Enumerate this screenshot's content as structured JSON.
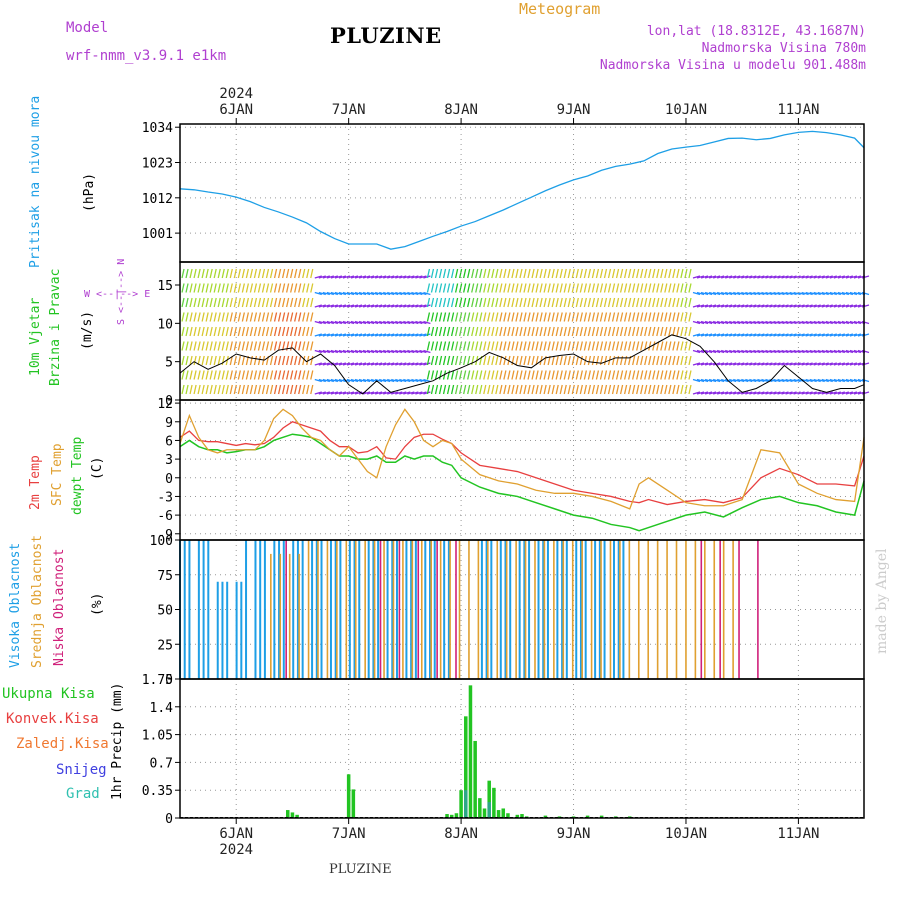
{
  "header": {
    "model_label": "Model",
    "model_name": "wrf-nmm_v3.9.1 e1km",
    "title": "PLUZINE",
    "meteogram": "Meteogram",
    "lonlat": "lon,lat (18.8312E, 43.1687N)",
    "elevation": "Nadmorska Visina 780m",
    "model_elevation": "Nadmorska Visina u modelu 901.488m",
    "footer": "PLUZINE",
    "watermark": "made by Angel"
  },
  "colors": {
    "pressure": "#1e9fe6",
    "wind_label": "#22c422",
    "wind_dir_label": "#b040d0",
    "t2m": "#e84040",
    "tsfc": "#e0a030",
    "dewpt": "#22c422",
    "cloud_high": "#1e9fe6",
    "cloud_mid": "#e0a030",
    "cloud_low": "#d0207a",
    "precip_total": "#22c422",
    "precip_conv": "#e84040",
    "precip_frz": "#f07830",
    "precip_snow": "#4040e0",
    "precip_grad": "#30c0b0",
    "header_purple": "#b040d0",
    "header_orange": "#e0a030"
  },
  "panels": {
    "pressure": {
      "label": "Pritisak na nivou mora",
      "unit": "(hPa)"
    },
    "wind": {
      "label1": "10m Vjetar",
      "label2": "Brzina i Pravac",
      "unit": "(m/s)",
      "dir_ns": "S <--|--> N",
      "dir_we": "W <--|--> E"
    },
    "temp": {
      "label_t2m": "2m Temp",
      "label_tsfc": "SFC Temp",
      "label_dew": "dewpt Temp",
      "unit": "(C)"
    },
    "cloud": {
      "label_high": "Visoka Oblacnost",
      "label_mid": "Srednja Oblacnost",
      "label_low": "Niska Oblacnost",
      "unit": "(%)"
    },
    "precip": {
      "unit": "1hr Precip (mm)"
    }
  },
  "legend_precip": [
    "Ukupna Kisa",
    "Konvek.Kisa",
    "Zaledj.Kisa",
    "Snijeg",
    "Grad"
  ],
  "chart_data": {
    "type": "line",
    "x_start_hour": -12,
    "x_end_hour": 134,
    "x_axis": {
      "top_year": "2024",
      "bottom_year": "2024",
      "day_ticks": [
        {
          "label": "6JAN",
          "hour": 0
        },
        {
          "label": "7JAN",
          "hour": 24
        },
        {
          "label": "8JAN",
          "hour": 48
        },
        {
          "label": "9JAN",
          "hour": 72
        },
        {
          "label": "10JAN",
          "hour": 96
        },
        {
          "label": "11JAN",
          "hour": 120
        }
      ]
    },
    "pressure": {
      "ylim": [
        992,
        1035
      ],
      "ticks": [
        "1001",
        "1012",
        "1023",
        "1034"
      ],
      "tick_values": [
        1001,
        1012,
        1023,
        1034
      ],
      "x": [
        -12,
        -9,
        -6,
        -3,
        0,
        3,
        6,
        9,
        12,
        15,
        18,
        21,
        24,
        27,
        30,
        33,
        36,
        39,
        42,
        45,
        48,
        51,
        54,
        57,
        60,
        63,
        66,
        69,
        72,
        75,
        78,
        81,
        84,
        87,
        90,
        93,
        96,
        99,
        102,
        105,
        108,
        111,
        114,
        117,
        120,
        123,
        126,
        129,
        132,
        134
      ],
      "y": [
        1014.8,
        1014.5,
        1013.8,
        1013.2,
        1012.2,
        1010.8,
        1009,
        1007.6,
        1006,
        1004.2,
        1001.5,
        999.3,
        997.6,
        997.6,
        997.6,
        996,
        996.8,
        998.4,
        1000,
        1001.5,
        1003.2,
        1004.6,
        1006.4,
        1008.2,
        1010.2,
        1012.2,
        1014.2,
        1016,
        1017.6,
        1018.8,
        1020.6,
        1021.8,
        1022.5,
        1023.5,
        1025.8,
        1027.2,
        1027.8,
        1028.3,
        1029.4,
        1030.5,
        1030.6,
        1030.1,
        1030.5,
        1031.6,
        1032.4,
        1032.7,
        1032.3,
        1031.6,
        1030.6,
        1027.6
      ]
    },
    "wind": {
      "ylim": [
        0,
        18
      ],
      "ticks": [
        "0",
        "5",
        "10",
        "15"
      ],
      "tick_values": [
        0,
        5,
        10,
        15
      ],
      "speed_x": [
        -12,
        -9,
        -6,
        -3,
        0,
        3,
        6,
        9,
        12,
        15,
        18,
        21,
        24,
        27,
        30,
        33,
        36,
        39,
        42,
        45,
        48,
        51,
        54,
        57,
        60,
        63,
        66,
        69,
        72,
        75,
        78,
        81,
        84,
        87,
        90,
        93,
        96,
        99,
        102,
        105,
        108,
        111,
        114,
        117,
        120,
        123,
        126,
        129,
        132,
        134
      ],
      "speed_y": [
        3.5,
        5,
        4,
        4.8,
        6,
        5.5,
        5.2,
        6.5,
        6.8,
        5,
        6,
        4.5,
        2,
        0.8,
        2.5,
        1,
        1.5,
        2,
        2.5,
        3.5,
        4.2,
        5,
        6.2,
        5.5,
        4.5,
        4.2,
        5.5,
        5.8,
        6,
        5,
        4.8,
        5.5,
        5.5,
        6.5,
        7.5,
        8.5,
        8,
        7,
        5,
        2.5,
        1,
        1.5,
        2.5,
        4.5,
        3,
        1.5,
        1,
        1.5,
        1.5,
        2
      ],
      "barb_speed": [
        8,
        9,
        9,
        10,
        11,
        12,
        13,
        14,
        15,
        13,
        6,
        4,
        3,
        2,
        3,
        3,
        3,
        3,
        3,
        4,
        6,
        7,
        10,
        12,
        13,
        13,
        13,
        12,
        12,
        12,
        12,
        13,
        13,
        13,
        12,
        11,
        10,
        6,
        4,
        3,
        3,
        3,
        3,
        4,
        4,
        4,
        4,
        4,
        4,
        4
      ],
      "barb_dir_class": [
        "n",
        "n",
        "n",
        "n",
        "n",
        "n",
        "n",
        "n",
        "n",
        "n",
        "e",
        "e",
        "e",
        "e",
        "e",
        "e",
        "e",
        "e",
        "n",
        "n",
        "n",
        "n",
        "n",
        "n",
        "n",
        "n",
        "n",
        "n",
        "n",
        "n",
        "n",
        "n",
        "n",
        "n",
        "n",
        "n",
        "n",
        "e",
        "e",
        "e",
        "e",
        "e",
        "e",
        "e",
        "e",
        "e",
        "e",
        "e",
        "e",
        "e"
      ]
    },
    "temperature": {
      "ylim": [
        -10,
        12.5
      ],
      "ticks": [
        "-9",
        "-6",
        "-3",
        "0",
        "3",
        "6",
        "9",
        "12"
      ],
      "tick_values": [
        -9,
        -6,
        -3,
        0,
        3,
        6,
        9,
        12
      ],
      "x": [
        -12,
        -10,
        -8,
        -6,
        -4,
        -2,
        0,
        2,
        4,
        6,
        8,
        10,
        12,
        14,
        16,
        18,
        20,
        22,
        24,
        26,
        28,
        30,
        32,
        34,
        36,
        38,
        40,
        42,
        44,
        46,
        48,
        52,
        56,
        60,
        64,
        68,
        72,
        76,
        80,
        84,
        86,
        88,
        92,
        96,
        100,
        104,
        108,
        112,
        116,
        120,
        124,
        128,
        132,
        134
      ],
      "t2m": [
        6.5,
        7.5,
        6,
        5.8,
        5.8,
        5.5,
        5.2,
        5.5,
        5.3,
        5.5,
        6.5,
        8,
        9,
        8.5,
        8,
        7.5,
        6,
        5,
        5,
        4,
        4.2,
        5,
        3.2,
        3,
        5,
        6.5,
        7,
        7,
        6.2,
        5.5,
        4,
        2,
        1.5,
        1,
        0,
        -1,
        -2,
        -2.5,
        -3,
        -3.8,
        -4,
        -3.5,
        -4.3,
        -3.8,
        -3.5,
        -4,
        -3.2,
        0,
        1.5,
        0.5,
        -1,
        -1,
        -1.3,
        3.5
      ],
      "tsfc": [
        5.5,
        10,
        6.5,
        4.5,
        4,
        4.5,
        4.5,
        4.5,
        4.5,
        6,
        9.5,
        11,
        10,
        8,
        6.5,
        6,
        4.5,
        3.5,
        5,
        3,
        1,
        0,
        5,
        8.5,
        11,
        9,
        6,
        5,
        6,
        5.5,
        3,
        0.5,
        -0.5,
        -1,
        -2,
        -2.5,
        -2.5,
        -3,
        -3.8,
        -5,
        -1,
        0,
        -2,
        -4,
        -4.5,
        -4.5,
        -3.5,
        4.5,
        4,
        -1,
        -2.5,
        -3.5,
        -3.8,
        6.5
      ],
      "dewpt": [
        5,
        6,
        5,
        4.5,
        4.5,
        4,
        4.2,
        4.5,
        4.5,
        5,
        6,
        6.5,
        7,
        6.8,
        6.5,
        5.5,
        4.5,
        3.5,
        3.5,
        3,
        3,
        3.5,
        2.5,
        2.5,
        3.5,
        3,
        3.5,
        3.5,
        2.5,
        2,
        0,
        -1.5,
        -2.5,
        -3,
        -4,
        -5,
        -6,
        -6.5,
        -7.5,
        -8,
        -8.5,
        -8,
        -7,
        -6,
        -5.5,
        -6.3,
        -4.8,
        -3.5,
        -3,
        -4,
        -4.5,
        -5.5,
        -6,
        -0.5
      ]
    },
    "cloud": {
      "ylim": [
        0,
        100
      ],
      "ticks": [
        "0",
        "25",
        "50",
        "75",
        "100"
      ],
      "tick_values": [
        0,
        25,
        50,
        75,
        100
      ],
      "high": [
        100,
        100,
        100,
        100,
        100,
        100,
        100,
        100,
        100,
        100,
        100,
        100,
        100,
        100,
        100,
        100,
        100,
        100,
        100,
        100,
        100,
        100,
        100,
        100,
        100,
        100,
        100,
        100,
        100,
        100,
        100,
        100,
        100,
        100,
        100,
        100,
        100,
        100,
        100,
        100,
        100,
        100,
        100,
        100,
        100,
        100,
        100,
        100,
        100,
        100,
        100,
        100,
        100,
        100,
        100,
        100,
        100,
        100,
        100,
        100,
        100,
        100,
        100,
        100,
        100,
        100,
        100,
        100,
        100,
        100,
        100,
        100,
        100,
        100,
        100,
        100,
        100,
        100,
        100,
        100,
        100,
        100,
        100,
        100,
        100,
        100,
        100,
        100,
        100,
        100,
        100,
        100,
        100,
        100,
        100,
        100,
        100,
        100,
        100,
        100,
        100,
        100,
        100,
        100,
        100,
        100,
        100,
        100,
        100,
        100,
        100,
        100,
        100,
        100,
        100,
        100,
        100,
        100,
        100,
        100,
        100,
        100,
        100,
        100,
        100,
        100,
        100,
        100,
        100,
        100,
        100,
        100,
        100,
        100,
        100,
        100,
        100,
        100,
        100,
        100,
        100,
        100,
        100,
        100,
        100
      ],
      "mid": [
        100,
        100,
        100,
        100,
        100,
        100,
        100,
        100,
        100,
        100,
        100,
        100,
        100,
        100,
        100,
        100,
        100,
        100,
        100,
        100,
        100,
        100,
        100,
        100,
        100,
        100,
        100,
        100,
        100,
        100,
        100,
        100,
        100,
        100,
        100,
        100,
        100,
        100,
        100,
        100,
        100,
        100,
        100,
        100,
        100,
        100,
        100,
        100,
        100,
        100,
        100,
        100,
        100,
        100,
        100,
        100,
        100,
        100,
        100,
        100,
        100,
        100,
        100,
        100,
        100,
        100,
        100,
        100,
        100,
        100,
        100,
        100,
        100,
        100,
        100,
        100,
        100,
        100,
        100,
        100,
        100,
        100,
        100,
        100,
        100,
        100,
        100,
        100,
        100,
        100,
        100,
        100,
        100,
        100,
        100,
        100,
        100,
        100,
        100,
        100,
        100,
        100,
        100,
        100,
        100,
        100,
        100,
        100,
        100,
        100,
        100,
        100,
        100,
        100,
        100,
        100,
        100,
        100,
        100,
        100,
        100,
        100,
        100,
        100,
        100,
        100,
        100,
        100,
        100,
        100,
        100,
        100,
        100,
        100,
        100,
        100,
        100,
        100,
        100,
        100,
        100,
        100,
        100,
        100,
        100
      ],
      "low": [
        100,
        100,
        100,
        100,
        100,
        100,
        100,
        100,
        100,
        100,
        100,
        100,
        100,
        100,
        100,
        100,
        100,
        100,
        100,
        100,
        100,
        100,
        100,
        100,
        100,
        100,
        100,
        100,
        100,
        100,
        100,
        100,
        100,
        100,
        100,
        100,
        100,
        100,
        100,
        100,
        100,
        100,
        100,
        100,
        100,
        100,
        100,
        100,
        100,
        100,
        100,
        100,
        100,
        100,
        100,
        100,
        100,
        100,
        100,
        100,
        100,
        100,
        100,
        100,
        100,
        100,
        100,
        100,
        100,
        100,
        100,
        100,
        100,
        100,
        100,
        100,
        100,
        100,
        100,
        100,
        100,
        100,
        100,
        100,
        100,
        100,
        100,
        100,
        100,
        100,
        100,
        100,
        100,
        100,
        100,
        100,
        100,
        100,
        100,
        100,
        100,
        100,
        100,
        100,
        100,
        100,
        100,
        100,
        100,
        100,
        100,
        100,
        100,
        100,
        100,
        100,
        100,
        100,
        100,
        100,
        100,
        100,
        100,
        100,
        100,
        100,
        100,
        100,
        100,
        100,
        100,
        100,
        100,
        100,
        100,
        100,
        100,
        100,
        100,
        100,
        100,
        100,
        100,
        100,
        100
      ]
    },
    "precip": {
      "ylim": [
        0,
        1.75
      ],
      "ticks": [
        "0",
        "0.35",
        "0.7",
        "1.05",
        "1.4",
        "1.75"
      ],
      "tick_values": [
        0,
        0.35,
        0.7,
        1.05,
        1.4,
        1.75
      ],
      "total": [
        {
          "hour": 11,
          "value": 0.1
        },
        {
          "hour": 12,
          "value": 0.07
        },
        {
          "hour": 13,
          "value": 0.04
        },
        {
          "hour": 24,
          "value": 0.55
        },
        {
          "hour": 25,
          "value": 0.36
        },
        {
          "hour": 45,
          "value": 0.05
        },
        {
          "hour": 46,
          "value": 0.04
        },
        {
          "hour": 47,
          "value": 0.06
        },
        {
          "hour": 48,
          "value": 0.35
        },
        {
          "hour": 49,
          "value": 1.28
        },
        {
          "hour": 50,
          "value": 1.67
        },
        {
          "hour": 51,
          "value": 0.97
        },
        {
          "hour": 52,
          "value": 0.25
        },
        {
          "hour": 53,
          "value": 0.12
        },
        {
          "hour": 54,
          "value": 0.47
        },
        {
          "hour": 55,
          "value": 0.38
        },
        {
          "hour": 56,
          "value": 0.1
        },
        {
          "hour": 57,
          "value": 0.12
        },
        {
          "hour": 58,
          "value": 0.06
        },
        {
          "hour": 60,
          "value": 0.04
        },
        {
          "hour": 61,
          "value": 0.05
        },
        {
          "hour": 62,
          "value": 0.02
        },
        {
          "hour": 66,
          "value": 0.03
        },
        {
          "hour": 69,
          "value": 0.02
        },
        {
          "hour": 72,
          "value": 0.02
        },
        {
          "hour": 75,
          "value": 0.03
        },
        {
          "hour": 78,
          "value": 0.03
        },
        {
          "hour": 81,
          "value": 0.02
        },
        {
          "hour": 84,
          "value": 0.02
        }
      ],
      "snow": [
        {
          "hour": 49,
          "value": 0.35
        },
        {
          "hour": 54,
          "value": 0.2
        }
      ]
    }
  }
}
